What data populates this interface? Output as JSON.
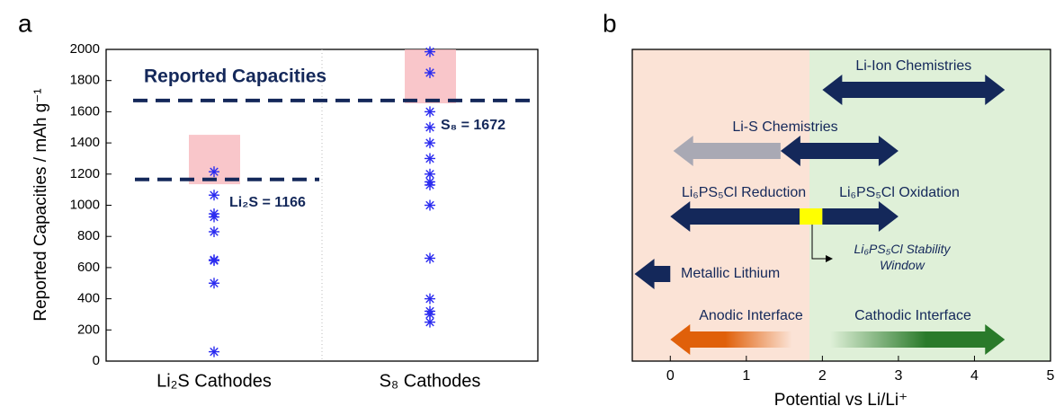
{
  "chart_data": [
    {
      "type": "scatter",
      "panel_label": "a",
      "title": "Reported Capacities",
      "ylabel": "Reported Capacities / mAh g⁻¹",
      "categories": [
        "Li₂S Cathodes",
        "S₈ Cathodes"
      ],
      "values": [
        [
          1215,
          1065,
          945,
          925,
          830,
          650,
          645,
          500,
          60
        ],
        [
          1985,
          1850,
          1600,
          1500,
          1400,
          1300,
          1200,
          1150,
          1130,
          1000,
          660,
          400,
          320,
          300,
          250
        ]
      ],
      "color": "#2b2bf0",
      "reference_lines": [
        {
          "value": 1166,
          "label": "Li₂S = 1166"
        },
        {
          "value": 1672,
          "label": "S₈ = 1672"
        }
      ],
      "shaded_ranges": [
        [
          1135,
          1452
        ],
        [
          1654,
          2000
        ]
      ],
      "ylim": [
        0,
        2000
      ],
      "yticks": [
        0,
        200,
        400,
        600,
        800,
        1000,
        1200,
        1400,
        1600,
        1800,
        2000
      ],
      "grid": true
    },
    {
      "type": "range",
      "panel_label": "b",
      "xlabel": "Potential vs Li/Li⁺",
      "xlim": [
        -0.5,
        5
      ],
      "xticks": [
        0,
        1,
        2,
        3,
        4,
        5
      ],
      "regions": [
        {
          "start": -0.5,
          "end": 1.83,
          "color": "#fbe3d6"
        },
        {
          "start": 1.83,
          "end": 5,
          "color": "#dff0d8"
        }
      ],
      "bars": [
        {
          "name": "Li-Ion Chemistries",
          "start": 2.0,
          "end": 4.4,
          "color": "#14285a"
        },
        {
          "start": 0.04,
          "end": 1.45,
          "color": "#a9a9b4"
        },
        {
          "name": "Li-S Chemistries",
          "start": 1.45,
          "end": 3.0,
          "color": "#14285a"
        },
        {
          "name": "Li₆PS₅Cl Reduction",
          "start": 0.0,
          "end": 1.7,
          "color": "#14285a"
        },
        {
          "start": 1.7,
          "end": 2.0,
          "color": "#ffff00"
        },
        {
          "name": "Li₆PS₅Cl Oxidation",
          "start": 2.0,
          "end": 3.0,
          "color": "#14285a"
        },
        {
          "name": "Metallic Lithium",
          "start": -0.47,
          "end": 0.0,
          "color": "#14285a"
        },
        {
          "name": "Anodic Interface",
          "start": 0.0,
          "end": 1.6,
          "color": "#e0600a"
        },
        {
          "name": "Cathodic Interface",
          "start": 2.1,
          "end": 4.4,
          "color": "#2a7a2a"
        }
      ],
      "annotation": "Li₆PS₅Cl Stability Window"
    }
  ]
}
